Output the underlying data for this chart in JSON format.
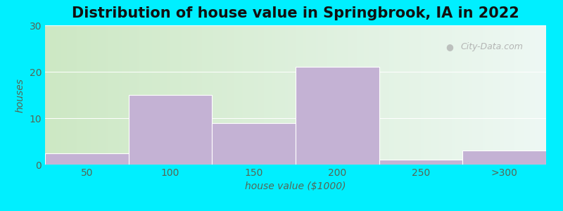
{
  "title": "Distribution of house value in Springbrook, IA in 2022",
  "xlabel": "house value ($1000)",
  "ylabel": "houses",
  "xtick_labels": [
    "50",
    "100",
    "150",
    "200",
    "250",
    ">300"
  ],
  "values": [
    2.5,
    15,
    9,
    21,
    1,
    3
  ],
  "bar_color": "#c4b2d4",
  "ylim": [
    0,
    30
  ],
  "yticks": [
    0,
    10,
    20,
    30
  ],
  "outer_bg": "#00efff",
  "plot_bg_left": "#cde8c4",
  "plot_bg_right": "#eef8f4",
  "watermark": "City-Data.com",
  "title_fontsize": 15,
  "axis_fontsize": 10,
  "tick_fontsize": 10,
  "tick_color": "#556655",
  "label_color": "#556655"
}
